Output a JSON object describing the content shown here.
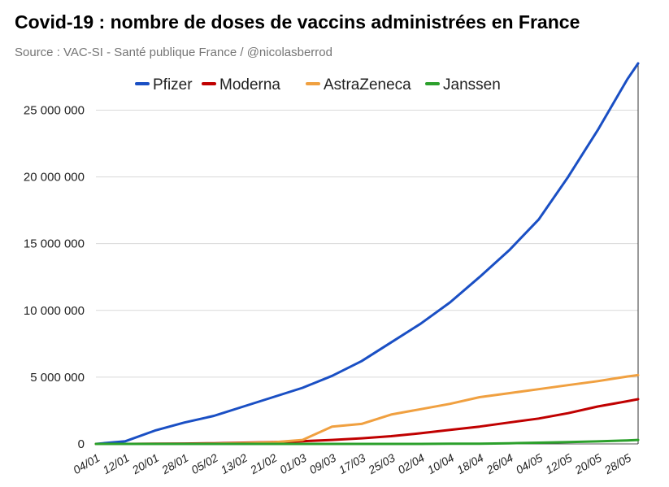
{
  "header": {
    "title": "Covid-19 : nombre de doses de vaccins administrées en France",
    "subtitle": "Source : VAC-SI - Santé publique France / @nicolasberrod"
  },
  "chart_data": {
    "type": "line",
    "title": "Covid-19 : nombre de doses de vaccins administrées en France",
    "subtitle": "Source : VAC-SI - Santé publique France / @nicolasberrod",
    "xlabel": "",
    "ylabel": "",
    "ylim": [
      0,
      28500000
    ],
    "yticks": [
      0,
      5000000,
      10000000,
      15000000,
      20000000,
      25000000
    ],
    "ytick_labels": [
      "0",
      "5 000 000",
      "10 000 000",
      "15 000 000",
      "20 000 000",
      "25 000 000"
    ],
    "xtick_labels": [
      "04/01",
      "12/01",
      "20/01",
      "28/01",
      "05/02",
      "13/02",
      "21/02",
      "01/03",
      "09/03",
      "17/03",
      "25/03",
      "02/04",
      "10/04",
      "18/04",
      "26/04",
      "04/05",
      "12/05",
      "20/05",
      "28/05"
    ],
    "grid": true,
    "legend_position": "top-left",
    "x_points": [
      "04/01",
      "12/01",
      "20/01",
      "28/01",
      "05/02",
      "13/02",
      "21/02",
      "01/03",
      "09/03",
      "17/03",
      "25/03",
      "02/04",
      "10/04",
      "18/04",
      "26/04",
      "04/05",
      "12/05",
      "20/05",
      "28/05",
      "31/05"
    ],
    "series": [
      {
        "name": "Pfizer",
        "color": "#1a4fc4",
        "values": [
          0,
          200000,
          1000000,
          1600000,
          2100000,
          2800000,
          3500000,
          4200000,
          5100000,
          6200000,
          7600000,
          9000000,
          10600000,
          12500000,
          14500000,
          16800000,
          20000000,
          23500000,
          27300000,
          28500000
        ]
      },
      {
        "name": "Moderna",
        "color": "#c00000",
        "values": [
          0,
          0,
          10000,
          25000,
          50000,
          90000,
          140000,
          200000,
          300000,
          420000,
          580000,
          800000,
          1050000,
          1300000,
          1600000,
          1900000,
          2300000,
          2800000,
          3200000,
          3350000
        ]
      },
      {
        "name": "AstraZeneca",
        "color": "#f0a040",
        "values": [
          0,
          0,
          0,
          0,
          20000,
          60000,
          120000,
          300000,
          1300000,
          1500000,
          2200000,
          2600000,
          3000000,
          3500000,
          3800000,
          4100000,
          4400000,
          4700000,
          5050000,
          5150000
        ]
      },
      {
        "name": "Janssen",
        "color": "#2ca02c",
        "values": [
          0,
          0,
          0,
          0,
          0,
          0,
          0,
          0,
          0,
          0,
          0,
          0,
          10000,
          20000,
          50000,
          90000,
          140000,
          190000,
          260000,
          300000
        ]
      }
    ]
  }
}
